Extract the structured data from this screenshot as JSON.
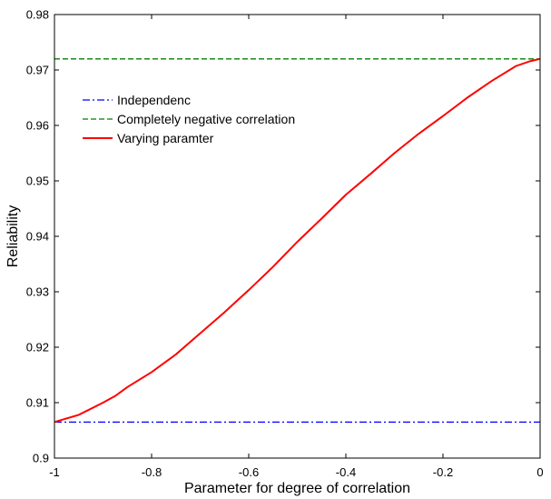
{
  "chart_data": {
    "type": "line",
    "title": "",
    "xlabel": "Parameter for degree of correlation",
    "ylabel": "Reliability",
    "xlim": [
      -1,
      0
    ],
    "ylim": [
      0.9,
      0.98
    ],
    "xticks": [
      -1,
      -0.8,
      -0.6,
      -0.4,
      -0.2,
      0
    ],
    "xtick_labels": [
      "-1",
      "-0.8",
      "-0.6",
      "-0.4",
      "-0.2",
      "0"
    ],
    "yticks": [
      0.9,
      0.91,
      0.92,
      0.93,
      0.94,
      0.95,
      0.96,
      0.97,
      0.98
    ],
    "ytick_labels": [
      "0.9",
      "0.91",
      "0.92",
      "0.93",
      "0.94",
      "0.95",
      "0.96",
      "0.97",
      "0.98"
    ],
    "grid": false,
    "legend_position": "top-left",
    "series": [
      {
        "name": "Independenc",
        "color": "#0000ff",
        "style": "dashdot",
        "x": [
          -1,
          0
        ],
        "y": [
          0.9065,
          0.9065
        ]
      },
      {
        "name": "Completely negative correlation",
        "color": "#008000",
        "style": "dashed",
        "x": [
          -1,
          0
        ],
        "y": [
          0.972,
          0.972
        ]
      },
      {
        "name": "Varying paramter",
        "color": "#ff0000",
        "style": "solid",
        "x": [
          -1,
          -0.95,
          -0.9,
          -0.875,
          -0.85,
          -0.8,
          -0.75,
          -0.7,
          -0.65,
          -0.6,
          -0.55,
          -0.5,
          -0.45,
          -0.4,
          -0.35,
          -0.3,
          -0.25,
          -0.2,
          -0.15,
          -0.1,
          -0.05,
          -0.02,
          0
        ],
        "y": [
          0.9065,
          0.9078,
          0.91,
          0.9112,
          0.9128,
          0.9155,
          0.9187,
          0.9225,
          0.9263,
          0.9303,
          0.9345,
          0.939,
          0.9432,
          0.9475,
          0.9512,
          0.955,
          0.9585,
          0.9617,
          0.965,
          0.968,
          0.9707,
          0.9716,
          0.972
        ]
      }
    ]
  }
}
